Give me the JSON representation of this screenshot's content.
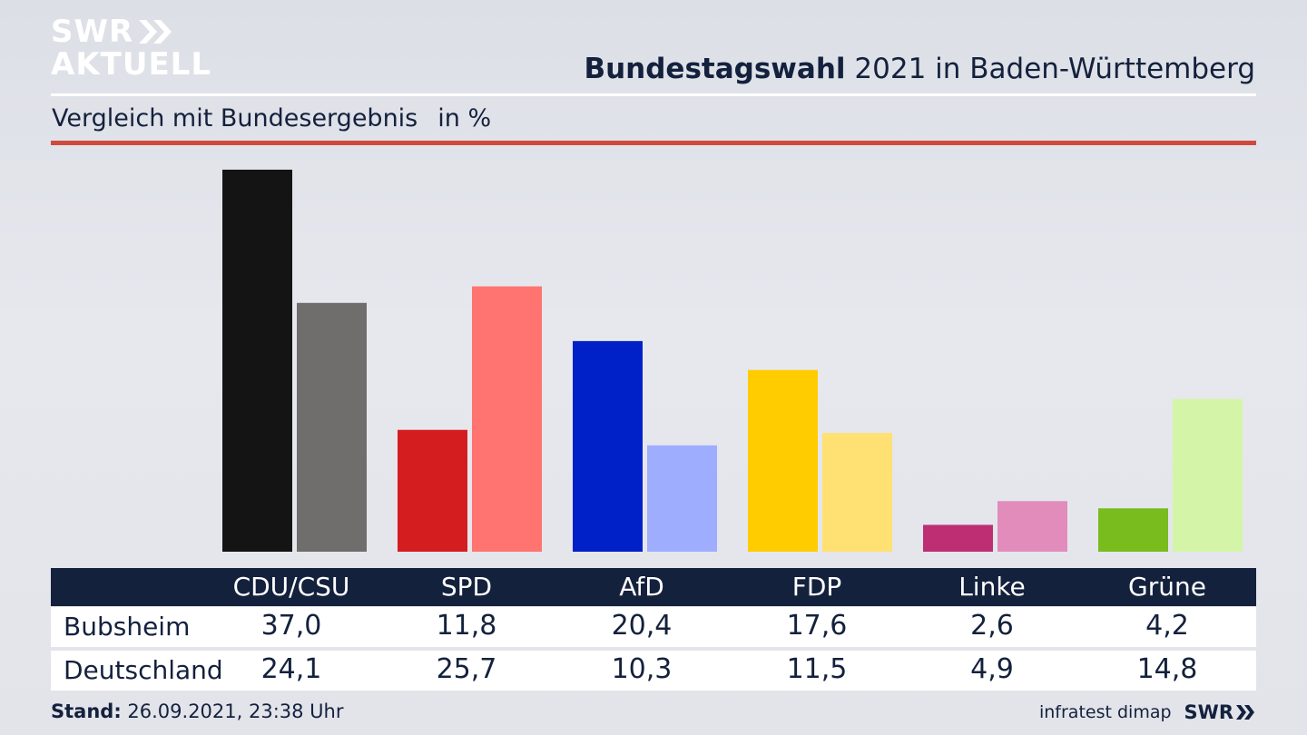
{
  "brand": {
    "line1": "SWR",
    "line2": "AKTUELL",
    "chevron_icon": "double-chevron-right-icon"
  },
  "header": {
    "title_bold": "Bundestagswahl",
    "title_rest": " 2021 in Baden-Württemberg",
    "subtitle": "Vergleich mit Bundesergebnis",
    "unit": "in %"
  },
  "colors": {
    "accent_rule": "#cf4a3c",
    "table_header": "#14213d"
  },
  "chart_data": {
    "type": "bar",
    "categories": [
      "CDU/CSU",
      "SPD",
      "AfD",
      "FDP",
      "Linke",
      "Grüne"
    ],
    "series": [
      {
        "name": "Bubsheim",
        "values": [
          37.0,
          11.8,
          20.4,
          17.6,
          2.6,
          4.2
        ],
        "colors": [
          "#141414",
          "#d41d1f",
          "#0021c8",
          "#ffcc00",
          "#bd2e73",
          "#78bc1e"
        ]
      },
      {
        "name": "Deutschland",
        "values": [
          24.1,
          25.7,
          10.3,
          11.5,
          4.9,
          14.8
        ],
        "colors": [
          "#6f6e6c",
          "#ff7470",
          "#9fadff",
          "#ffe072",
          "#e18cbb",
          "#d4f5a8"
        ]
      }
    ],
    "ylim": [
      0,
      37.0
    ],
    "grid": false,
    "legend": "table-below"
  },
  "table": {
    "headers": [
      "CDU/CSU",
      "SPD",
      "AfD",
      "FDP",
      "Linke",
      "Grüne"
    ],
    "rows": [
      {
        "label": "Bubsheim",
        "values": [
          "37,0",
          "11,8",
          "20,4",
          "17,6",
          "2,6",
          "4,2"
        ]
      },
      {
        "label": "Deutschland",
        "values": [
          "24,1",
          "25,7",
          "10,3",
          "11,5",
          "4,9",
          "14,8"
        ]
      }
    ]
  },
  "footer": {
    "stand_label": "Stand:",
    "stand_value": " 26.09.2021, 23:38 Uhr",
    "source": "infratest dimap",
    "brand": "SWR"
  }
}
